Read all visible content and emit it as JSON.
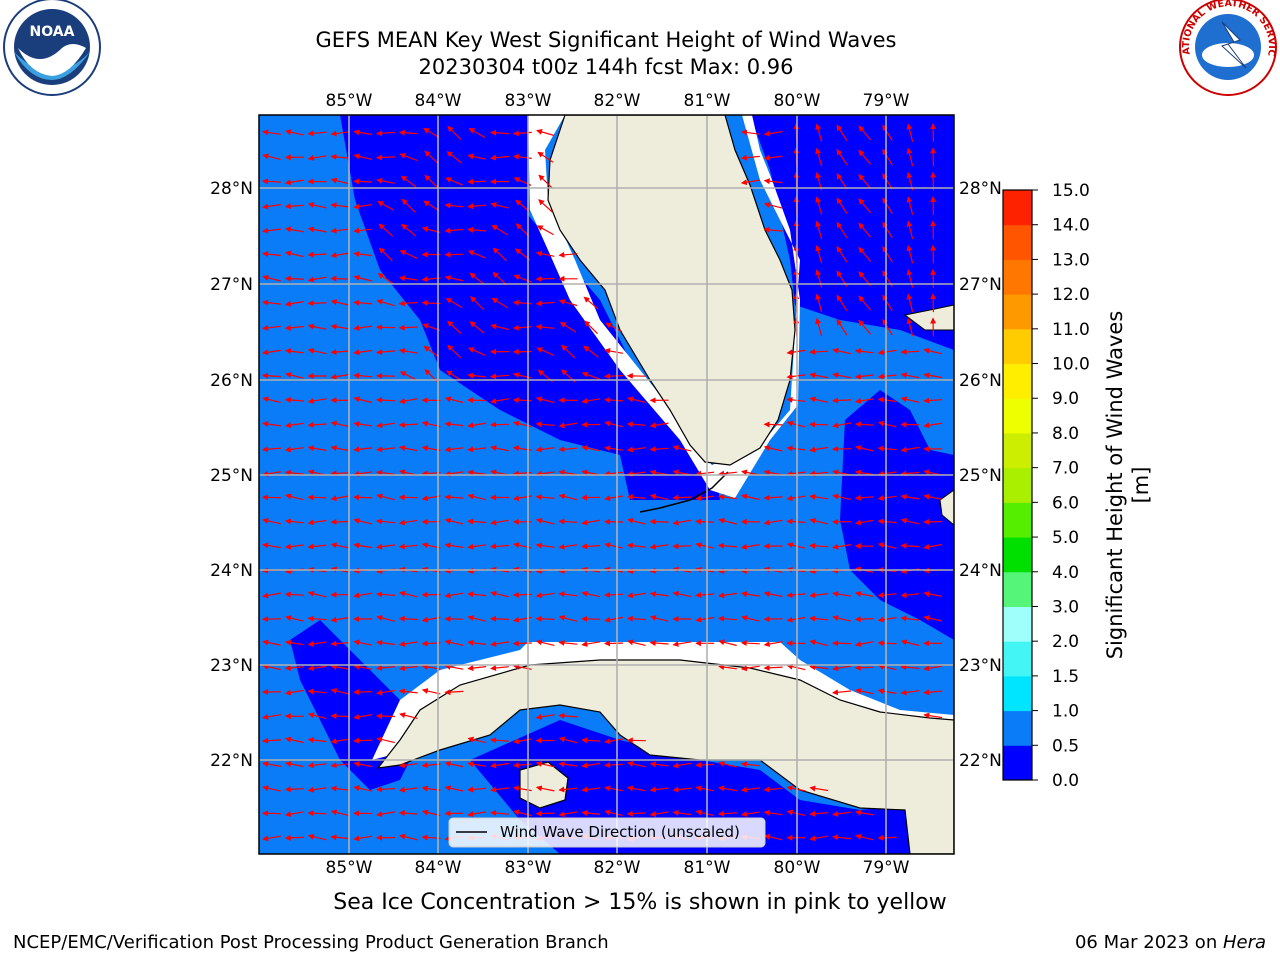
{
  "title": {
    "line1": "GEFS MEAN Key West Significant Height of Wind Waves",
    "line2": "20230304 t00z 144h fcst   Max: 0.96"
  },
  "map": {
    "lon_labels": [
      "85°W",
      "84°W",
      "83°W",
      "82°W",
      "81°W",
      "80°W",
      "79°W"
    ],
    "lat_labels": [
      "28°N",
      "27°N",
      "26°N",
      "25°N",
      "24°N",
      "23°N",
      "22°N"
    ],
    "legend_label": "Wind Wave Direction (unscaled)",
    "colors": {
      "ocean_light": "#0a7cf7",
      "ocean_dark": "#0000ff",
      "land": "#eeeddc",
      "grid": "#b0b0b0",
      "arrow": "#ff0000",
      "ice_mask": "#ffffff"
    }
  },
  "colorbar": {
    "label": "Significant Height of Wind Waves [m]",
    "ticks": [
      "0.0",
      "0.5",
      "1.0",
      "1.5",
      "2.0",
      "3.0",
      "4.0",
      "5.0",
      "6.0",
      "7.0",
      "8.0",
      "9.0",
      "10.0",
      "11.0",
      "12.0",
      "13.0",
      "14.0",
      "15.0"
    ],
    "colors": [
      "#0000ff",
      "#0a7cf7",
      "#00e5ff",
      "#44f5f5",
      "#9ffffa",
      "#55f57a",
      "#00e000",
      "#55ee00",
      "#aaee00",
      "#ccee00",
      "#eeff00",
      "#ffee00",
      "#ffcc00",
      "#ff9900",
      "#ff7700",
      "#ff5500",
      "#ff2200"
    ]
  },
  "logos": {
    "noaa_text": "NOAA",
    "noaa_ring": "NATIONAL OCEANIC AND ATMOSPHERIC ADMINISTRATION · U.S. DEPARTMENT OF COMMERCE",
    "nws_ring": "NATIONAL WEATHER SERVICE"
  },
  "caption": "Sea Ice Concentration > 15% is shown in pink to yellow",
  "footer": {
    "left": "NCEP/EMC/Verification Post Processing Product Generation Branch",
    "date": "06 Mar 2023 on ",
    "host": "Hera"
  }
}
